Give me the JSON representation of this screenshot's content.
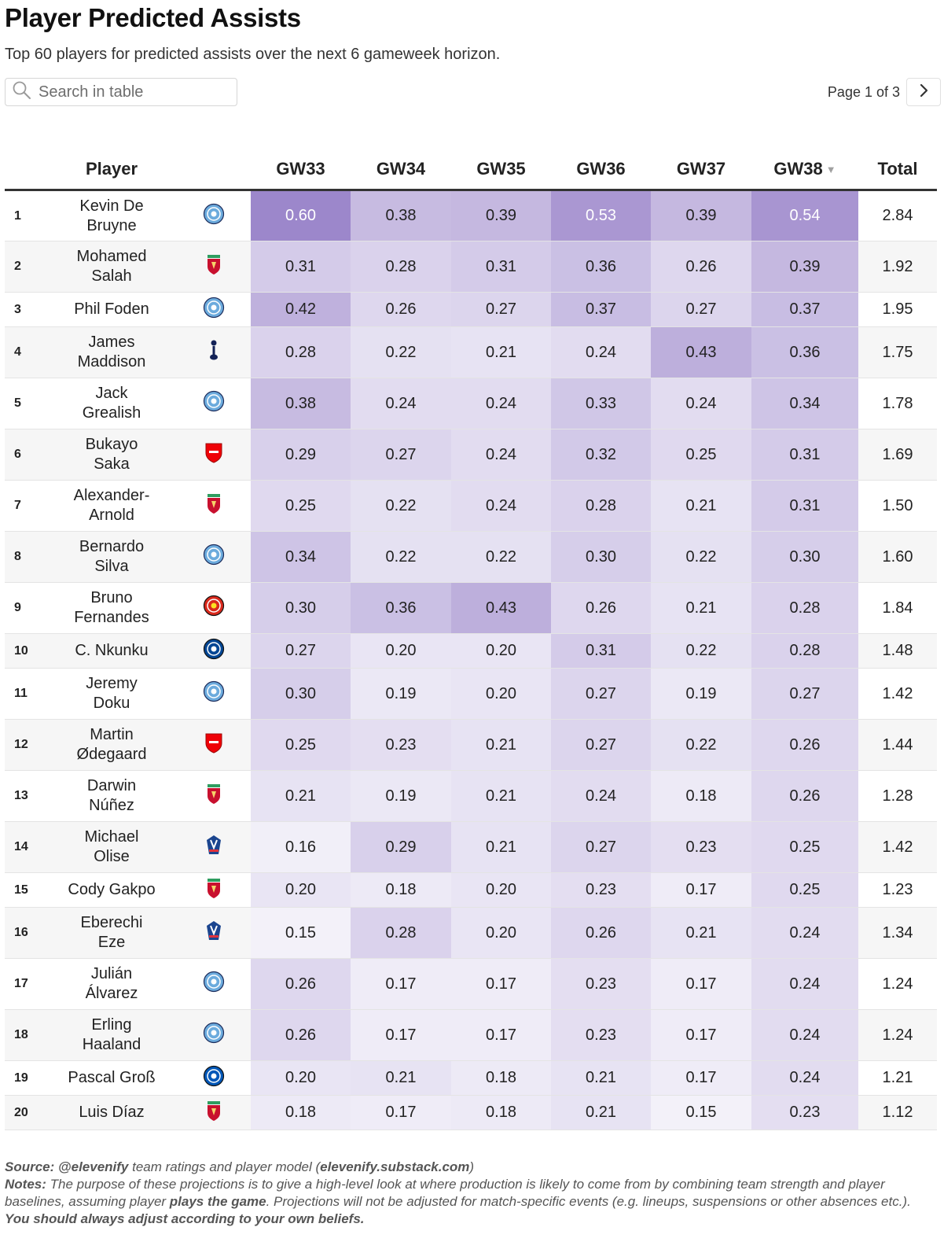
{
  "title": "Player Predicted Assists",
  "subtitle": "Top 60 players for predicted assists over the next 6 gameweek horizon.",
  "search": {
    "placeholder": "Search in table"
  },
  "pagination": {
    "label": "Page 1 of 3"
  },
  "table": {
    "columns": [
      "",
      "Player",
      "",
      "GW33",
      "GW34",
      "GW35",
      "GW36",
      "GW37",
      "GW38",
      "Total"
    ],
    "sorted_column": "GW38",
    "rows": [
      {
        "rank": "1",
        "player": "Kevin De Bruyne",
        "lines": [
          "Kevin De",
          "Bruyne"
        ],
        "team": "man-city",
        "gw": [
          "0.60",
          "0.38",
          "0.39",
          "0.53",
          "0.39",
          "0.54"
        ],
        "total": "2.84"
      },
      {
        "rank": "2",
        "player": "Mohamed Salah",
        "lines": [
          "Mohamed",
          "Salah"
        ],
        "team": "liverpool",
        "gw": [
          "0.31",
          "0.28",
          "0.31",
          "0.36",
          "0.26",
          "0.39"
        ],
        "total": "1.92"
      },
      {
        "rank": "3",
        "player": "Phil Foden",
        "lines": [
          "Phil Foden"
        ],
        "team": "man-city",
        "gw": [
          "0.42",
          "0.26",
          "0.27",
          "0.37",
          "0.27",
          "0.37"
        ],
        "total": "1.95"
      },
      {
        "rank": "4",
        "player": "James Maddison",
        "lines": [
          "James",
          "Maddison"
        ],
        "team": "tottenham",
        "gw": [
          "0.28",
          "0.22",
          "0.21",
          "0.24",
          "0.43",
          "0.36"
        ],
        "total": "1.75"
      },
      {
        "rank": "5",
        "player": "Jack Grealish",
        "lines": [
          "Jack",
          "Grealish"
        ],
        "team": "man-city",
        "gw": [
          "0.38",
          "0.24",
          "0.24",
          "0.33",
          "0.24",
          "0.34"
        ],
        "total": "1.78"
      },
      {
        "rank": "6",
        "player": "Bukayo Saka",
        "lines": [
          "Bukayo",
          "Saka"
        ],
        "team": "arsenal",
        "gw": [
          "0.29",
          "0.27",
          "0.24",
          "0.32",
          "0.25",
          "0.31"
        ],
        "total": "1.69"
      },
      {
        "rank": "7",
        "player": "Alexander-Arnold",
        "lines": [
          "Alexander-",
          "Arnold"
        ],
        "team": "liverpool",
        "gw": [
          "0.25",
          "0.22",
          "0.24",
          "0.28",
          "0.21",
          "0.31"
        ],
        "total": "1.50"
      },
      {
        "rank": "8",
        "player": "Bernardo Silva",
        "lines": [
          "Bernardo",
          "Silva"
        ],
        "team": "man-city",
        "gw": [
          "0.34",
          "0.22",
          "0.22",
          "0.30",
          "0.22",
          "0.30"
        ],
        "total": "1.60"
      },
      {
        "rank": "9",
        "player": "Bruno Fernandes",
        "lines": [
          "Bruno",
          "Fernandes"
        ],
        "team": "man-utd",
        "gw": [
          "0.30",
          "0.36",
          "0.43",
          "0.26",
          "0.21",
          "0.28"
        ],
        "total": "1.84"
      },
      {
        "rank": "10",
        "player": "C. Nkunku",
        "lines": [
          "C. Nkunku"
        ],
        "team": "chelsea",
        "gw": [
          "0.27",
          "0.20",
          "0.20",
          "0.31",
          "0.22",
          "0.28"
        ],
        "total": "1.48"
      },
      {
        "rank": "11",
        "player": "Jeremy Doku",
        "lines": [
          "Jeremy",
          "Doku"
        ],
        "team": "man-city",
        "gw": [
          "0.30",
          "0.19",
          "0.20",
          "0.27",
          "0.19",
          "0.27"
        ],
        "total": "1.42"
      },
      {
        "rank": "12",
        "player": "Martin Ødegaard",
        "lines": [
          "Martin",
          "Ødegaard"
        ],
        "team": "arsenal",
        "gw": [
          "0.25",
          "0.23",
          "0.21",
          "0.27",
          "0.22",
          "0.26"
        ],
        "total": "1.44"
      },
      {
        "rank": "13",
        "player": "Darwin Núñez",
        "lines": [
          "Darwin",
          "Núñez"
        ],
        "team": "liverpool",
        "gw": [
          "0.21",
          "0.19",
          "0.21",
          "0.24",
          "0.18",
          "0.26"
        ],
        "total": "1.28"
      },
      {
        "rank": "14",
        "player": "Michael Olise",
        "lines": [
          "Michael",
          "Olise"
        ],
        "team": "crystal-palace",
        "gw": [
          "0.16",
          "0.29",
          "0.21",
          "0.27",
          "0.23",
          "0.25"
        ],
        "total": "1.42"
      },
      {
        "rank": "15",
        "player": "Cody Gakpo",
        "lines": [
          "Cody Gakpo"
        ],
        "team": "liverpool",
        "gw": [
          "0.20",
          "0.18",
          "0.20",
          "0.23",
          "0.17",
          "0.25"
        ],
        "total": "1.23"
      },
      {
        "rank": "16",
        "player": "Eberechi Eze",
        "lines": [
          "Eberechi",
          "Eze"
        ],
        "team": "crystal-palace",
        "gw": [
          "0.15",
          "0.28",
          "0.20",
          "0.26",
          "0.21",
          "0.24"
        ],
        "total": "1.34"
      },
      {
        "rank": "17",
        "player": "Julián Álvarez",
        "lines": [
          "Julián",
          "Álvarez"
        ],
        "team": "man-city",
        "gw": [
          "0.26",
          "0.17",
          "0.17",
          "0.23",
          "0.17",
          "0.24"
        ],
        "total": "1.24"
      },
      {
        "rank": "18",
        "player": "Erling Haaland",
        "lines": [
          "Erling",
          "Haaland"
        ],
        "team": "man-city",
        "gw": [
          "0.26",
          "0.17",
          "0.17",
          "0.23",
          "0.17",
          "0.24"
        ],
        "total": "1.24"
      },
      {
        "rank": "19",
        "player": "Pascal Groß",
        "lines": [
          "Pascal Groß"
        ],
        "team": "brighton",
        "gw": [
          "0.20",
          "0.21",
          "0.18",
          "0.21",
          "0.17",
          "0.24"
        ],
        "total": "1.21"
      },
      {
        "rank": "20",
        "player": "Luis Díaz",
        "lines": [
          "Luis Díaz"
        ],
        "team": "liverpool",
        "gw": [
          "0.18",
          "0.17",
          "0.18",
          "0.21",
          "0.15",
          "0.23"
        ],
        "total": "1.12"
      }
    ]
  },
  "colors": {
    "heat_low": "#f3f1f9",
    "heat_high": "#9c87cb",
    "text_dark": "#222222",
    "text_on_dark": "#ffffff",
    "team": {
      "man-city": "#6cabdd",
      "liverpool": "#c8102e",
      "tottenham": "#132257",
      "arsenal": "#ef0107",
      "man-utd": "#da291c",
      "chelsea": "#034694",
      "crystal-palace": "#1b458f",
      "brighton": "#0057b8"
    }
  },
  "footer": {
    "source_label": "Source:",
    "source_handle": "@elevenify",
    "source_text": " team ratings and player model (",
    "source_site": "elevenify.substack.com",
    "source_close": ")",
    "notes_label": "Notes:",
    "notes_text_1": " The purpose of these projections is to give a high-level look at where production is likely to come from by combining team strength and player baselines, assuming player ",
    "notes_bold": "plays the game",
    "notes_text_2": ". Projections will not be adjusted for match-specific events (e.g. lineups, suspensions or other absences etc.).",
    "notes_final": "You should always adjust according to your own beliefs."
  }
}
